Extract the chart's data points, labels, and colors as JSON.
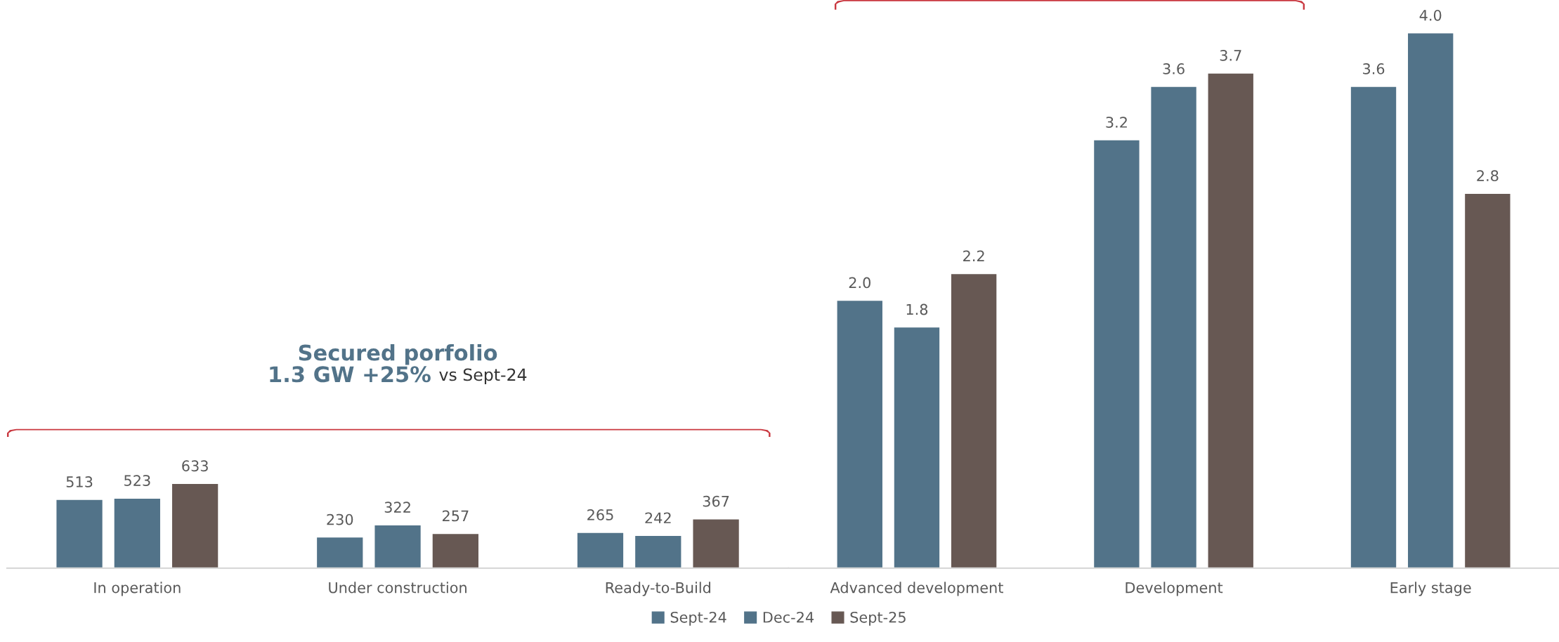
{
  "chart_data": [
    {
      "type": "bar",
      "categories": [
        "In operation",
        "Under construction",
        "Ready-to-Build"
      ],
      "data_labels": true,
      "legend": "bottom",
      "tick_labels": "x",
      "series": [
        {
          "name": "Sept-24",
          "color": "#527389",
          "values": [
            513,
            230,
            265
          ]
        },
        {
          "name": "Dec-24",
          "color": "#527389",
          "values": [
            523,
            322,
            242
          ]
        },
        {
          "name": "Sept-25",
          "color": "#675853",
          "values": [
            633,
            257,
            367
          ]
        }
      ],
      "annotations": [
        "Secured porfolio",
        "1.3 GW +25%",
        "vs Sept-24"
      ]
    },
    {
      "type": "bar",
      "categories": [
        "Advanced development",
        "Development",
        "Early stage"
      ],
      "tick_labels": "x",
      "series": [
        {
          "color": "#527389",
          "values": [
            2.0,
            3.2,
            3.6
          ],
          "value_labels": [
            "2.0",
            "3.2",
            "3.6"
          ]
        },
        {
          "color": "#527389",
          "values": [
            1.8,
            3.6,
            4.0
          ],
          "value_labels": [
            "1.8",
            "3.6",
            "4.0"
          ]
        },
        {
          "color": "#675853",
          "values": [
            2.2,
            3.7,
            2.8
          ],
          "value_labels": [
            "2.2",
            "3.7",
            "2.8"
          ]
        }
      ]
    }
  ]
}
